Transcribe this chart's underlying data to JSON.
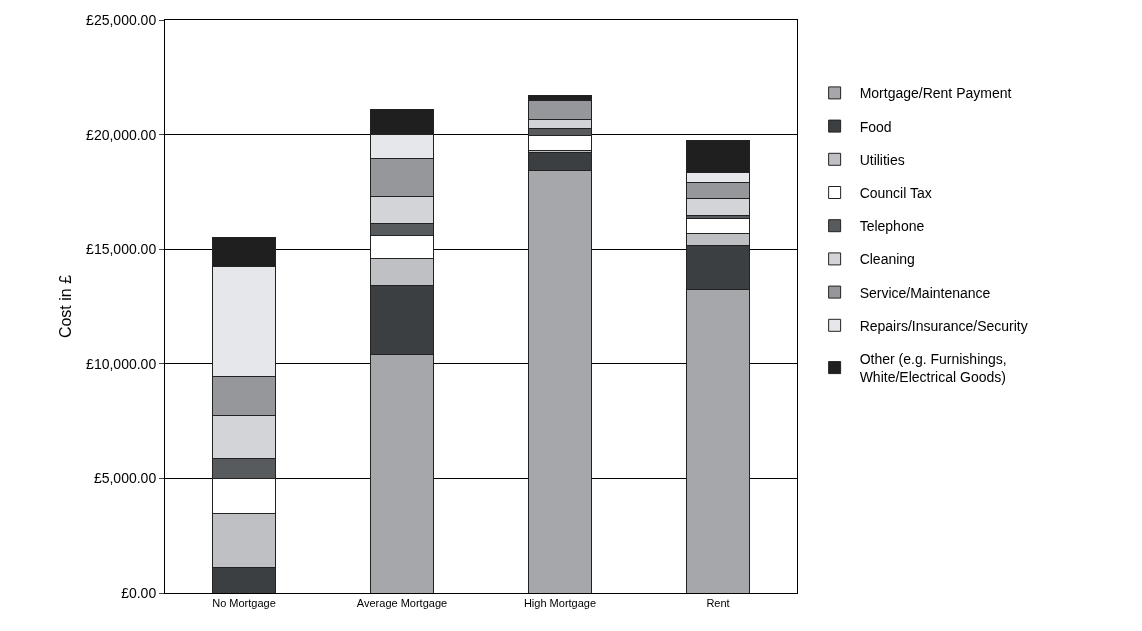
{
  "chart_data": {
    "type": "bar",
    "stacked": true,
    "ylabel": "Cost in £",
    "categories": [
      "No Mortgage",
      "Average Mortgage",
      "High Mortgage",
      "Rent"
    ],
    "series": [
      {
        "name": "Mortgage/Rent Payment",
        "color": "#a5a7ab",
        "values": [
          null,
          10400,
          18450,
          13250
        ]
      },
      {
        "name": "Food",
        "color": "#3b3f42",
        "values": [
          1100,
          3000,
          750,
          1900
        ]
      },
      {
        "name": "Utilities",
        "color": "#bfc0c3",
        "values": [
          2350,
          1200,
          100,
          550
        ]
      },
      {
        "name": "Council Tax",
        "color": "#ffffff",
        "values": [
          1550,
          1000,
          650,
          650
        ]
      },
      {
        "name": "Telephone",
        "color": "#575b5e",
        "values": [
          850,
          500,
          300,
          100
        ]
      },
      {
        "name": "Cleaning",
        "color": "#d3d4d8",
        "values": [
          1900,
          1200,
          400,
          750
        ]
      },
      {
        "name": "Service/Maintenance",
        "color": "#96979b",
        "values": [
          1700,
          1650,
          850,
          700
        ]
      },
      {
        "name": "Repairs/Insurance/Security",
        "color": "#e6e7eb",
        "values": [
          4800,
          1050,
          50,
          450
        ]
      },
      {
        "name": "Other (e.g. Furnishings,\nWhite/Electrical Goods)",
        "color": "#1f1f1f",
        "values": [
          1250,
          1100,
          150,
          1400
        ]
      }
    ],
    "ylim": [
      0,
      25000
    ],
    "yticks": [
      {
        "value": 0,
        "label": "£0.00"
      },
      {
        "value": 5000,
        "label": "£5,000.00"
      },
      {
        "value": 10000,
        "label": "£10,000.00"
      },
      {
        "value": 15000,
        "label": "£15,000.00"
      },
      {
        "value": 20000,
        "label": "£20,000.00"
      },
      {
        "value": 25000,
        "label": "£25,000.00"
      }
    ],
    "grid": "y",
    "legend": "right"
  }
}
